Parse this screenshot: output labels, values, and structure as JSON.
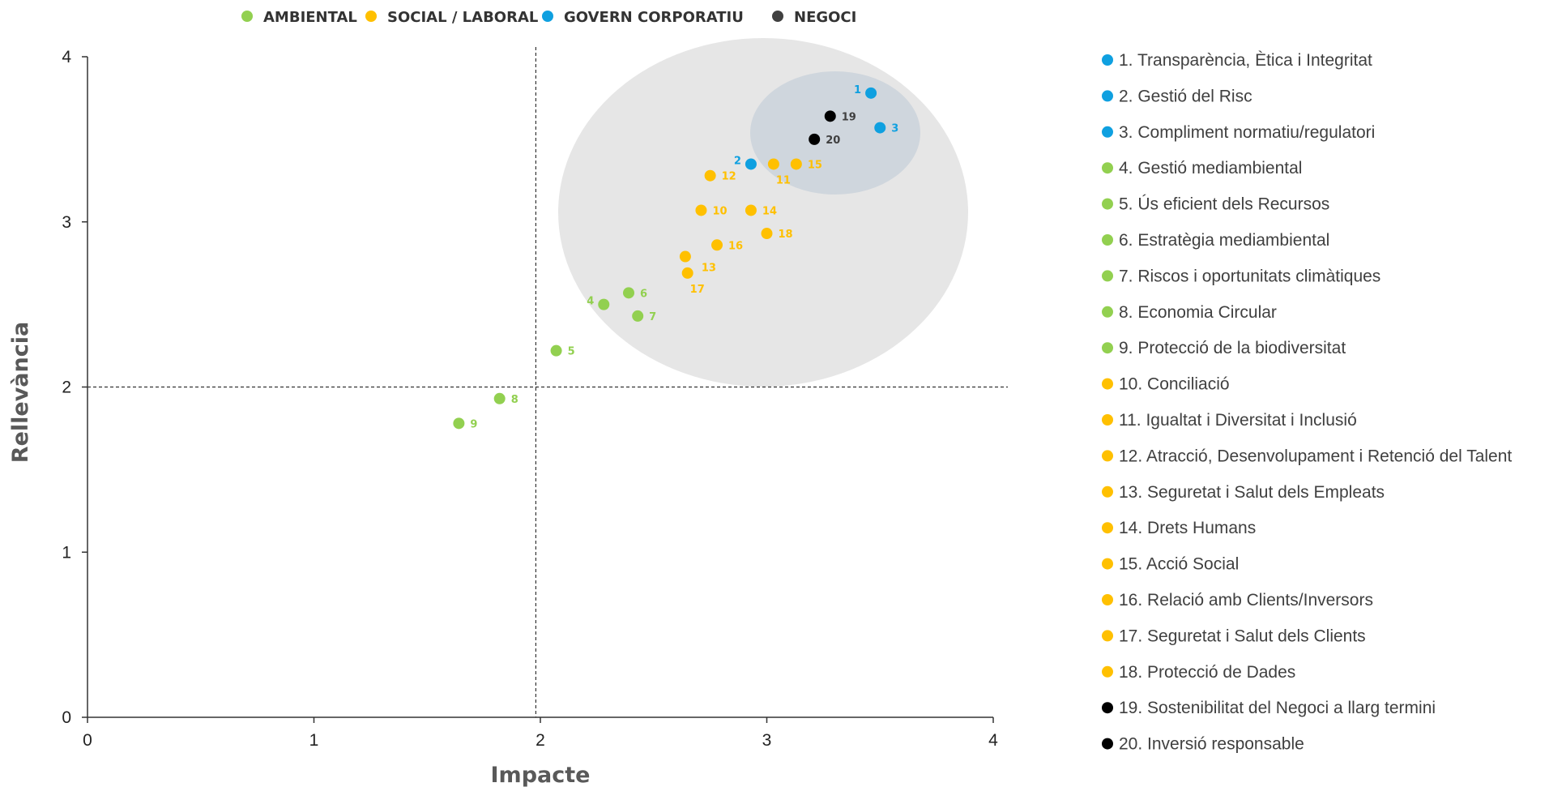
{
  "chart_data": {
    "type": "scatter",
    "xlabel": "Impacte",
    "ylabel": "Rellevància",
    "xlim": [
      0,
      4
    ],
    "ylim": [
      0,
      4
    ],
    "xticks": [
      "0",
      "1",
      "2",
      "3",
      "4"
    ],
    "yticks": [
      "0",
      "1",
      "2",
      "3",
      "4"
    ],
    "reference_lines": {
      "x": 1.98,
      "y": 2.0
    },
    "categories": [
      {
        "key": "ambiental",
        "name": "AMBIENTAL",
        "color": "#92D050"
      },
      {
        "key": "social",
        "name": "SOCIAL / LABORAL",
        "color": "#FFC000"
      },
      {
        "key": "govern",
        "name": "GOVERN CORPORATIU",
        "color": "#0FA0E0"
      },
      {
        "key": "negoci",
        "name": "NEGOCI",
        "color": "#404040"
      }
    ],
    "points": [
      {
        "id": "1",
        "cat": "govern",
        "x": 3.46,
        "y": 3.78,
        "side": "left"
      },
      {
        "id": "2",
        "cat": "govern",
        "x": 2.93,
        "y": 3.35,
        "side": "left"
      },
      {
        "id": "3",
        "cat": "govern",
        "x": 3.5,
        "y": 3.57,
        "side": "right"
      },
      {
        "id": "4",
        "cat": "ambiental",
        "x": 2.28,
        "y": 2.5,
        "side": "left"
      },
      {
        "id": "5",
        "cat": "ambiental",
        "x": 2.07,
        "y": 2.22,
        "side": "right"
      },
      {
        "id": "6",
        "cat": "ambiental",
        "x": 2.39,
        "y": 2.57,
        "side": "right"
      },
      {
        "id": "7",
        "cat": "ambiental",
        "x": 2.43,
        "y": 2.43,
        "side": "right"
      },
      {
        "id": "8",
        "cat": "ambiental",
        "x": 1.82,
        "y": 1.93,
        "side": "right"
      },
      {
        "id": "9",
        "cat": "ambiental",
        "x": 1.64,
        "y": 1.78,
        "side": "right"
      },
      {
        "id": "10",
        "cat": "social",
        "x": 2.71,
        "y": 3.07,
        "side": "right"
      },
      {
        "id": "11",
        "cat": "social",
        "x": 3.03,
        "y": 3.35,
        "side": "below"
      },
      {
        "id": "12",
        "cat": "social",
        "x": 2.75,
        "y": 3.28,
        "side": "right"
      },
      {
        "id": "13",
        "cat": "social",
        "x": 2.64,
        "y": 2.79,
        "side": "below-right"
      },
      {
        "id": "14",
        "cat": "social",
        "x": 2.93,
        "y": 3.07,
        "side": "right"
      },
      {
        "id": "15",
        "cat": "social",
        "x": 3.13,
        "y": 3.35,
        "side": "right"
      },
      {
        "id": "16",
        "cat": "social",
        "x": 2.78,
        "y": 2.86,
        "side": "right"
      },
      {
        "id": "17",
        "cat": "social",
        "x": 2.65,
        "y": 2.69,
        "side": "below"
      },
      {
        "id": "18",
        "cat": "social",
        "x": 3.0,
        "y": 2.93,
        "side": "right"
      },
      {
        "id": "19",
        "cat": "negoci",
        "x": 3.28,
        "y": 3.64,
        "side": "right"
      },
      {
        "id": "20",
        "cat": "negoci",
        "x": 3.21,
        "y": 3.5,
        "side": "right"
      }
    ],
    "legend_position": "top",
    "grid": false
  },
  "item_list": [
    {
      "label": "1. Transparència, Ètica i Integritat",
      "color": "#0FA0E0"
    },
    {
      "label": "2. Gestió del Risc",
      "color": "#0FA0E0"
    },
    {
      "label": "3. Compliment normatiu/regulatori",
      "color": "#0FA0E0"
    },
    {
      "label": "4. Gestió mediambiental",
      "color": "#92D050"
    },
    {
      "label": "5. Ús eficient dels Recursos",
      "color": "#92D050"
    },
    {
      "label": "6. Estratègia mediambiental",
      "color": "#92D050"
    },
    {
      "label": "7. Riscos i oportunitats climàtiques",
      "color": "#92D050"
    },
    {
      "label": "8. Economia Circular",
      "color": "#92D050"
    },
    {
      "label": "9. Protecció de la biodiversitat",
      "color": "#92D050"
    },
    {
      "label": "10. Conciliació",
      "color": "#FFC000"
    },
    {
      "label": "11. Igualtat i Diversitat i Inclusió",
      "color": "#FFC000"
    },
    {
      "label": "12. Atracció, Desenvolupament i Retenció del Talent",
      "color": "#FFC000"
    },
    {
      "label": "13. Seguretat i Salut dels Empleats",
      "color": "#FFC000"
    },
    {
      "label": "14. Drets Humans",
      "color": "#FFC000"
    },
    {
      "label": "15. Acció Social",
      "color": "#FFC000"
    },
    {
      "label": "16. Relació amb Clients/Inversors",
      "color": "#FFC000"
    },
    {
      "label": "17. Seguretat i Salut dels Clients",
      "color": "#FFC000"
    },
    {
      "label": "18. Protecció de Dades",
      "color": "#FFC000"
    },
    {
      "label": "19. Sostenibilitat del Negoci a llarg termini",
      "color": "#000000"
    },
    {
      "label": "20. Inversió responsable",
      "color": "#000000"
    }
  ]
}
